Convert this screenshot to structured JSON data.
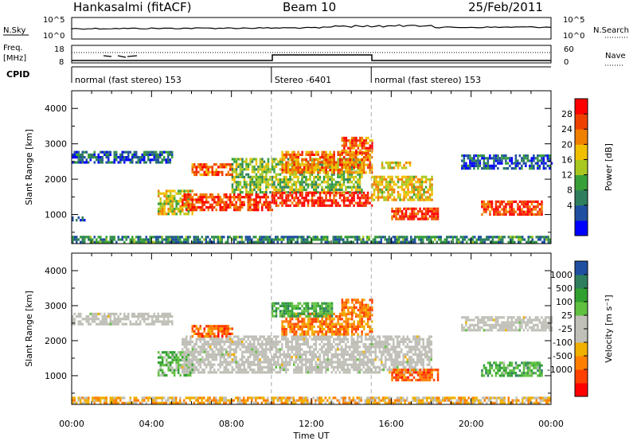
{
  "header": {
    "station": "Hankasalmi (fitACF)",
    "beam": "Beam 10",
    "date": "25/Feb/2011"
  },
  "top_panels": {
    "nsky_label": "N.Sky",
    "nsky_ticks": [
      "10^5",
      "10^0"
    ],
    "nsearch_label": "N.Search",
    "nsearch_ticks": [
      "10^5",
      "10^0"
    ],
    "freq_label_1": "Freq.",
    "freq_label_2": "[MHz]",
    "freq_ticks": [
      "18",
      "8"
    ],
    "nave_label": "Nave",
    "nave_ticks": [
      "60",
      "0"
    ],
    "cpid_label": "CPID",
    "cpid_segments": [
      {
        "label": "normal (fast stereo) 153",
        "start": 0,
        "end": 10
      },
      {
        "label": "Stereo -6401",
        "start": 10,
        "end": 15
      },
      {
        "label": "normal (fast stereo) 153",
        "start": 15,
        "end": 24
      }
    ]
  },
  "chart_data": [
    {
      "type": "heatmap",
      "quantity": "Power",
      "ylabel": "Slant Range [km]",
      "xlabel": "Time UT",
      "xlim_hours": [
        0,
        24
      ],
      "x_ticks": [
        "00:00",
        "04:00",
        "08:00",
        "12:00",
        "16:00",
        "20:00",
        "00:00"
      ],
      "ylim_km": [
        180,
        4500
      ],
      "y_ticks": [
        1000,
        2000,
        3000,
        4000
      ],
      "colorbar_label": "Power [dB]",
      "colorbar_ticks": [
        "28",
        "24",
        "20",
        "16",
        "12",
        "8",
        "4"
      ],
      "colorbar_colors": [
        "#0000ff",
        "#1f4fa0",
        "#2f7f5f",
        "#38a038",
        "#a8c820",
        "#f0c000",
        "#f08000",
        "#f04000",
        "#ff0000"
      ],
      "echo_regions": [
        {
          "t0": 0.0,
          "t1": 5.0,
          "r0": 2450,
          "r1": 2800,
          "level": 0.2
        },
        {
          "t0": 0.0,
          "t1": 0.6,
          "r0": 850,
          "r1": 950,
          "level": 0.15
        },
        {
          "t0": 4.3,
          "t1": 6.0,
          "r0": 1000,
          "r1": 1700,
          "level": 0.55
        },
        {
          "t0": 5.5,
          "t1": 10.0,
          "r0": 1100,
          "r1": 1600,
          "level": 0.85
        },
        {
          "t0": 6.0,
          "t1": 8.0,
          "r0": 2150,
          "r1": 2450,
          "level": 0.8
        },
        {
          "t0": 8.0,
          "t1": 14.5,
          "r0": 1600,
          "r1": 2600,
          "level": 0.45
        },
        {
          "t0": 10.0,
          "t1": 15.0,
          "r0": 1250,
          "r1": 1650,
          "level": 0.9
        },
        {
          "t0": 10.5,
          "t1": 15.0,
          "r0": 2200,
          "r1": 2800,
          "level": 0.75
        },
        {
          "t0": 13.5,
          "t1": 15.0,
          "r0": 2700,
          "r1": 3200,
          "level": 0.8
        },
        {
          "t0": 15.0,
          "t1": 18.0,
          "r0": 1400,
          "r1": 2100,
          "level": 0.6
        },
        {
          "t0": 15.5,
          "t1": 17.0,
          "r0": 2300,
          "r1": 2500,
          "level": 0.6
        },
        {
          "t0": 16.0,
          "t1": 18.3,
          "r0": 850,
          "r1": 1200,
          "level": 0.85
        },
        {
          "t0": 19.5,
          "t1": 24.0,
          "r0": 2300,
          "r1": 2700,
          "level": 0.2
        },
        {
          "t0": 20.5,
          "t1": 23.5,
          "r0": 1000,
          "r1": 1400,
          "level": 0.85
        },
        {
          "t0": 0.0,
          "t1": 24.0,
          "r0": 200,
          "r1": 400,
          "level": 0.3
        }
      ]
    },
    {
      "type": "heatmap",
      "quantity": "Velocity",
      "ylabel": "Slant Range [km]",
      "xlabel": "Time UT",
      "xlim_hours": [
        0,
        24
      ],
      "x_ticks": [
        "00:00",
        "04:00",
        "08:00",
        "12:00",
        "16:00",
        "20:00",
        "00:00"
      ],
      "ylim_km": [
        180,
        4500
      ],
      "y_ticks": [
        1000,
        2000,
        3000,
        4000
      ],
      "colorbar_label": "Velocity [m s⁻¹]",
      "colorbar_ticks": [
        "1000",
        "500",
        "100",
        "25",
        "-25",
        "-100",
        "-500",
        "-1000"
      ],
      "colorbar_colors": [
        "#ff0000",
        "#ff4000",
        "#ff8000",
        "#f0b000",
        "#c0c0b8",
        "#c0c0b8",
        "#60c040",
        "#30a030",
        "#2f7f5f",
        "#1f4fa0"
      ],
      "echo_regions": [
        {
          "t0": 0.0,
          "t1": 5.0,
          "r0": 2450,
          "r1": 2800,
          "vel": 0.0
        },
        {
          "t0": 4.3,
          "t1": 6.0,
          "r0": 1000,
          "r1": 1700,
          "vel": 0.35
        },
        {
          "t0": 5.5,
          "t1": 18.0,
          "r0": 1100,
          "r1": 2150,
          "vel": 0.0
        },
        {
          "t0": 6.0,
          "t1": 8.0,
          "r0": 2150,
          "r1": 2450,
          "vel": -0.6
        },
        {
          "t0": 10.5,
          "t1": 15.0,
          "r0": 2200,
          "r1": 2800,
          "vel": -0.5
        },
        {
          "t0": 10.0,
          "t1": 13.0,
          "r0": 2700,
          "r1": 3100,
          "vel": 0.45
        },
        {
          "t0": 13.5,
          "t1": 15.0,
          "r0": 2700,
          "r1": 3200,
          "vel": -0.55
        },
        {
          "t0": 16.0,
          "t1": 18.3,
          "r0": 850,
          "r1": 1200,
          "vel": -0.6
        },
        {
          "t0": 19.5,
          "t1": 24.0,
          "r0": 2300,
          "r1": 2700,
          "vel": 0.0
        },
        {
          "t0": 20.5,
          "t1": 23.5,
          "r0": 1000,
          "r1": 1400,
          "vel": 0.4
        },
        {
          "t0": 0.0,
          "t1": 24.0,
          "r0": 200,
          "r1": 400,
          "vel": -0.3
        }
      ]
    }
  ]
}
